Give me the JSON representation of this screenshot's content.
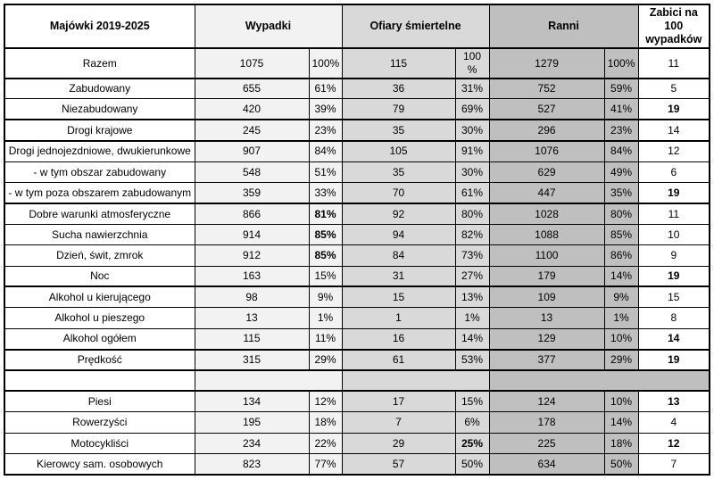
{
  "table": {
    "columns": {
      "label": "Majówki 2019-2025",
      "wypadki": "Wypadki",
      "ofiary": "Ofiary śmiertelne",
      "ranni": "Ranni",
      "zabici": "Zabici na\n100\nwypadków"
    },
    "colors": {
      "label_bg": "#ffffff",
      "wypadki_bg": "#f2f2f2",
      "ofiary_bg": "#d9d9d9",
      "ranni_bg": "#bfbfbf",
      "zabici_bg": "#ffffff",
      "border": "#000000",
      "text": "#000000"
    },
    "rows": [
      {
        "label": "Razem",
        "wypadki": "1075",
        "wypadki_pct": "100%",
        "ofiary": "115",
        "ofiary_pct": "100\n%",
        "ranni": "1279",
        "ranni_pct": "100%",
        "zabici": "11",
        "bold": [],
        "thick_bottom": true
      },
      {
        "label": "Zabudowany",
        "wypadki": "655",
        "wypadki_pct": "61%",
        "ofiary": "36",
        "ofiary_pct": "31%",
        "ranni": "752",
        "ranni_pct": "59%",
        "zabici": "5",
        "bold": [],
        "thick_bottom": false
      },
      {
        "label": "Niezabudowany",
        "wypadki": "420",
        "wypadki_pct": "39%",
        "ofiary": "79",
        "ofiary_pct": "69%",
        "ranni": "527",
        "ranni_pct": "41%",
        "zabici": "19",
        "bold": [
          "zabici"
        ],
        "thick_bottom": true
      },
      {
        "label": "Drogi krajowe",
        "wypadki": "245",
        "wypadki_pct": "23%",
        "ofiary": "35",
        "ofiary_pct": "30%",
        "ranni": "296",
        "ranni_pct": "23%",
        "zabici": "14",
        "bold": [],
        "thick_bottom": true
      },
      {
        "label": "Drogi jednojezdniowe, dwukierunkowe",
        "wypadki": "907",
        "wypadki_pct": "84%",
        "ofiary": "105",
        "ofiary_pct": "91%",
        "ranni": "1076",
        "ranni_pct": "84%",
        "zabici": "12",
        "bold": [],
        "thick_bottom": false
      },
      {
        "label": "- w tym obszar zabudowany",
        "wypadki": "548",
        "wypadki_pct": "51%",
        "ofiary": "35",
        "ofiary_pct": "30%",
        "ranni": "629",
        "ranni_pct": "49%",
        "zabici": "6",
        "bold": [],
        "thick_bottom": false
      },
      {
        "label": "- w tym poza obszarem zabudowanym",
        "wypadki": "359",
        "wypadki_pct": "33%",
        "ofiary": "70",
        "ofiary_pct": "61%",
        "ranni": "447",
        "ranni_pct": "35%",
        "zabici": "19",
        "bold": [
          "zabici"
        ],
        "thick_bottom": true
      },
      {
        "label": "Dobre warunki atmosferyczne",
        "wypadki": "866",
        "wypadki_pct": "81%",
        "ofiary": "92",
        "ofiary_pct": "80%",
        "ranni": "1028",
        "ranni_pct": "80%",
        "zabici": "11",
        "bold": [
          "wypadki_pct"
        ],
        "thick_bottom": false
      },
      {
        "label": "Sucha nawierzchnia",
        "wypadki": "914",
        "wypadki_pct": "85%",
        "ofiary": "94",
        "ofiary_pct": "82%",
        "ranni": "1088",
        "ranni_pct": "85%",
        "zabici": "10",
        "bold": [
          "wypadki_pct"
        ],
        "thick_bottom": false
      },
      {
        "label": "Dzień, świt, zmrok",
        "wypadki": "912",
        "wypadki_pct": "85%",
        "ofiary": "84",
        "ofiary_pct": "73%",
        "ranni": "1100",
        "ranni_pct": "86%",
        "zabici": "9",
        "bold": [
          "wypadki_pct"
        ],
        "thick_bottom": false
      },
      {
        "label": "Noc",
        "wypadki": "163",
        "wypadki_pct": "15%",
        "ofiary": "31",
        "ofiary_pct": "27%",
        "ranni": "179",
        "ranni_pct": "14%",
        "zabici": "19",
        "bold": [
          "zabici"
        ],
        "thick_bottom": true
      },
      {
        "label": "Alkohol u kierującego",
        "wypadki": "98",
        "wypadki_pct": "9%",
        "ofiary": "15",
        "ofiary_pct": "13%",
        "ranni": "109",
        "ranni_pct": "9%",
        "zabici": "15",
        "bold": [],
        "thick_bottom": false
      },
      {
        "label": "Alkohol u pieszego",
        "wypadki": "13",
        "wypadki_pct": "1%",
        "ofiary": "1",
        "ofiary_pct": "1%",
        "ranni": "13",
        "ranni_pct": "1%",
        "zabici": "8",
        "bold": [],
        "thick_bottom": false
      },
      {
        "label": "Alkohol ogółem",
        "wypadki": "115",
        "wypadki_pct": "11%",
        "ofiary": "16",
        "ofiary_pct": "14%",
        "ranni": "129",
        "ranni_pct": "10%",
        "zabici": "14",
        "bold": [
          "zabici"
        ],
        "thick_bottom": true
      },
      {
        "label": "Prędkość",
        "wypadki": "315",
        "wypadki_pct": "29%",
        "ofiary": "61",
        "ofiary_pct": "53%",
        "ranni": "377",
        "ranni_pct": "29%",
        "zabici": "19",
        "bold": [
          "zabici"
        ],
        "thick_bottom": true
      },
      {
        "spacer": true,
        "thick_bottom": true
      },
      {
        "label": "Piesi",
        "wypadki": "134",
        "wypadki_pct": "12%",
        "ofiary": "17",
        "ofiary_pct": "15%",
        "ranni": "124",
        "ranni_pct": "10%",
        "zabici": "13",
        "bold": [
          "zabici"
        ],
        "thick_bottom": false
      },
      {
        "label": "Rowerzyści",
        "wypadki": "195",
        "wypadki_pct": "18%",
        "ofiary": "7",
        "ofiary_pct": "6%",
        "ranni": "178",
        "ranni_pct": "14%",
        "zabici": "4",
        "bold": [],
        "thick_bottom": false
      },
      {
        "label": "Motocykliści",
        "wypadki": "234",
        "wypadki_pct": "22%",
        "ofiary": "29",
        "ofiary_pct": "25%",
        "ranni": "225",
        "ranni_pct": "18%",
        "zabici": "12",
        "bold": [
          "ofiary_pct",
          "zabici"
        ],
        "thick_bottom": false
      },
      {
        "label": "Kierowcy sam. osobowych",
        "wypadki": "823",
        "wypadki_pct": "77%",
        "ofiary": "57",
        "ofiary_pct": "50%",
        "ranni": "634",
        "ranni_pct": "50%",
        "zabici": "7",
        "bold": [],
        "thick_bottom": false
      }
    ]
  }
}
